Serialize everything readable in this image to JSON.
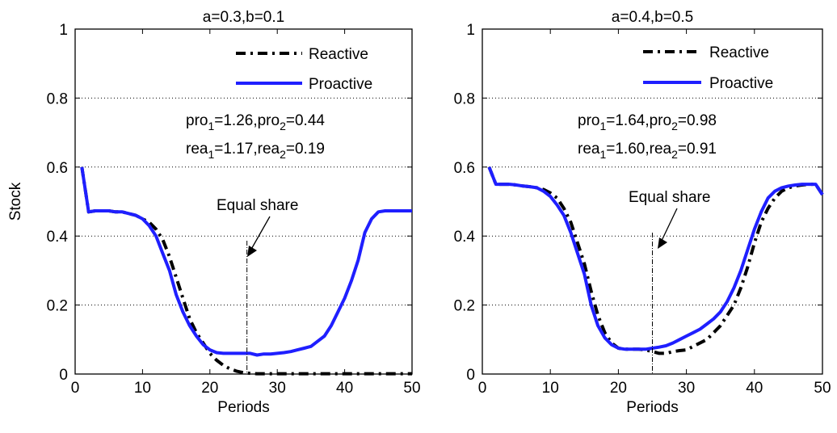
{
  "chart_data": [
    {
      "type": "line",
      "title": "a=0.3,b=0.1",
      "xlabel": "Periods",
      "ylabel": "Stock",
      "xlim": [
        0,
        50
      ],
      "ylim": [
        0,
        1
      ],
      "xticks": [
        "0",
        "10",
        "20",
        "30",
        "40",
        "50"
      ],
      "yticks": [
        "0",
        "0.2",
        "0.4",
        "0.6",
        "0.8",
        "1"
      ],
      "grid": "y-dotted",
      "legend_position": "top-right",
      "series": [
        {
          "name": "Reactive",
          "style": "dash-dot",
          "color": "#000000",
          "x": [
            1,
            2,
            3,
            4,
            5,
            6,
            7,
            8,
            9,
            10,
            11,
            12,
            13,
            14,
            15,
            16,
            17,
            18,
            19,
            20,
            21,
            22,
            23,
            24,
            25,
            26,
            27,
            28,
            29,
            30,
            31,
            32,
            33,
            34,
            35,
            36,
            37,
            38,
            39,
            40,
            41,
            42,
            43,
            44,
            45,
            46,
            47,
            48,
            49,
            50
          ],
          "y": [
            0.6,
            0.47,
            0.473,
            0.473,
            0.473,
            0.47,
            0.47,
            0.465,
            0.46,
            0.45,
            0.44,
            0.42,
            0.39,
            0.34,
            0.28,
            0.22,
            0.16,
            0.12,
            0.09,
            0.06,
            0.04,
            0.025,
            0.015,
            0.008,
            0.004,
            0.002,
            0.001,
            0.001,
            0.001,
            0.001,
            0.001,
            0.001,
            0.001,
            0.001,
            0.001,
            0.001,
            0.001,
            0.001,
            0.001,
            0.001,
            0.001,
            0.001,
            0.001,
            0.001,
            0.001,
            0.001,
            0.001,
            0.001,
            0.001,
            0.001
          ]
        },
        {
          "name": "Proactive",
          "style": "solid",
          "color": "#1f1fff",
          "x": [
            1,
            2,
            3,
            4,
            5,
            6,
            7,
            8,
            9,
            10,
            11,
            12,
            13,
            14,
            15,
            16,
            17,
            18,
            19,
            20,
            21,
            22,
            23,
            24,
            25,
            26,
            27,
            28,
            29,
            30,
            31,
            32,
            33,
            34,
            35,
            36,
            37,
            38,
            39,
            40,
            41,
            42,
            43,
            44,
            45,
            46,
            47,
            48,
            49,
            50
          ],
          "y": [
            0.6,
            0.47,
            0.473,
            0.473,
            0.473,
            0.47,
            0.47,
            0.465,
            0.46,
            0.45,
            0.43,
            0.4,
            0.35,
            0.3,
            0.23,
            0.18,
            0.14,
            0.11,
            0.085,
            0.07,
            0.062,
            0.06,
            0.06,
            0.06,
            0.06,
            0.06,
            0.055,
            0.058,
            0.058,
            0.06,
            0.062,
            0.065,
            0.07,
            0.075,
            0.08,
            0.095,
            0.11,
            0.14,
            0.18,
            0.22,
            0.27,
            0.33,
            0.41,
            0.45,
            0.47,
            0.473,
            0.473,
            0.473,
            0.473,
            0.473
          ]
        }
      ],
      "annotations": [
        {
          "text": "pro",
          "sub": "1",
          "text2": "=1.26,pro",
          "sub2": "2",
          "text3": "=0.44"
        },
        {
          "text": "rea",
          "sub": "1",
          "text2": "=1.17,rea",
          "sub2": "2",
          "text3": "=0.19"
        },
        {
          "text": "Equal share",
          "x": 25.5
        }
      ]
    },
    {
      "type": "line",
      "title": "a=0.4,b=0.5",
      "xlabel": "Periods",
      "ylabel": "",
      "xlim": [
        0,
        50
      ],
      "ylim": [
        0,
        1
      ],
      "xticks": [
        "0",
        "10",
        "20",
        "30",
        "40",
        "50"
      ],
      "yticks": [
        "0",
        "0.2",
        "0.4",
        "0.6",
        "0.8",
        "1"
      ],
      "grid": "y-dotted",
      "legend_position": "top-right",
      "series": [
        {
          "name": "Reactive",
          "style": "dash-dot",
          "color": "#000000",
          "x": [
            1,
            2,
            3,
            4,
            5,
            6,
            7,
            8,
            9,
            10,
            11,
            12,
            13,
            14,
            15,
            16,
            17,
            18,
            19,
            20,
            21,
            22,
            23,
            24,
            25,
            26,
            27,
            28,
            29,
            30,
            31,
            32,
            33,
            34,
            35,
            36,
            37,
            38,
            39,
            40,
            41,
            42,
            43,
            44,
            45,
            46,
            47,
            48,
            49,
            50
          ],
          "y": [
            0.6,
            0.55,
            0.55,
            0.55,
            0.548,
            0.545,
            0.543,
            0.54,
            0.535,
            0.525,
            0.51,
            0.48,
            0.44,
            0.38,
            0.32,
            0.24,
            0.17,
            0.12,
            0.09,
            0.075,
            0.072,
            0.072,
            0.072,
            0.07,
            0.065,
            0.06,
            0.06,
            0.065,
            0.068,
            0.07,
            0.08,
            0.09,
            0.1,
            0.12,
            0.14,
            0.17,
            0.2,
            0.25,
            0.31,
            0.38,
            0.44,
            0.48,
            0.51,
            0.53,
            0.54,
            0.545,
            0.548,
            0.55,
            0.55,
            0.52
          ]
        },
        {
          "name": "Proactive",
          "style": "solid",
          "color": "#1f1fff",
          "x": [
            1,
            2,
            3,
            4,
            5,
            6,
            7,
            8,
            9,
            10,
            11,
            12,
            13,
            14,
            15,
            16,
            17,
            18,
            19,
            20,
            21,
            22,
            23,
            24,
            25,
            26,
            27,
            28,
            29,
            30,
            31,
            32,
            33,
            34,
            35,
            36,
            37,
            38,
            39,
            40,
            41,
            42,
            43,
            44,
            45,
            46,
            47,
            48,
            49,
            50
          ],
          "y": [
            0.6,
            0.55,
            0.55,
            0.55,
            0.548,
            0.545,
            0.543,
            0.54,
            0.53,
            0.515,
            0.49,
            0.46,
            0.41,
            0.35,
            0.29,
            0.2,
            0.14,
            0.105,
            0.085,
            0.075,
            0.072,
            0.072,
            0.072,
            0.072,
            0.075,
            0.078,
            0.082,
            0.09,
            0.1,
            0.11,
            0.12,
            0.13,
            0.145,
            0.16,
            0.18,
            0.21,
            0.25,
            0.3,
            0.36,
            0.42,
            0.47,
            0.51,
            0.53,
            0.54,
            0.545,
            0.548,
            0.55,
            0.55,
            0.55,
            0.52
          ]
        }
      ],
      "annotations": [
        {
          "text": "pro",
          "sub": "1",
          "text2": "=1.64,pro",
          "sub2": "2",
          "text3": "=0.98"
        },
        {
          "text": "rea",
          "sub": "1",
          "text2": "=1.60,rea",
          "sub2": "2",
          "text3": "=0.91"
        },
        {
          "text": "Equal share",
          "x": 25
        }
      ]
    }
  ]
}
